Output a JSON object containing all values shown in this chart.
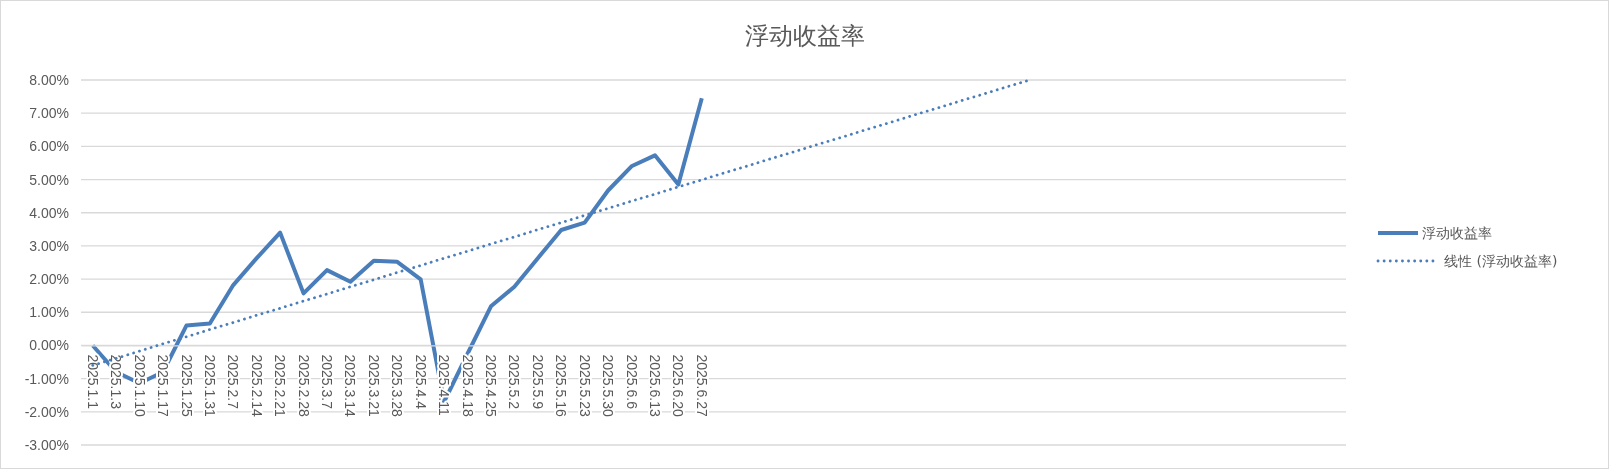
{
  "chart_data": {
    "type": "line",
    "title": "浮动收益率",
    "categories": [
      "2025.1.1",
      "2025.1.3",
      "2025.1.10",
      "2025.1.17",
      "2025.1.25",
      "2025.1.31",
      "2025.2.7",
      "2025.2.14",
      "2025.2.21",
      "2025.2.28",
      "2025.3.7",
      "2025.3.14",
      "2025.3.21",
      "2025.3.28",
      "2025.4.4",
      "2025.4.11",
      "2025.4.18",
      "2025.4.25",
      "2025.5.2",
      "2025.5.9",
      "2025.5.16",
      "2025.5.23",
      "2025.5.30",
      "2025.6.6",
      "2025.6.13",
      "2025.6.20",
      "2025.6.27",
      null,
      null,
      null,
      null,
      null,
      null,
      null,
      null,
      null,
      null,
      null,
      null,
      null,
      null,
      null,
      null,
      null,
      null,
      null,
      null,
      null,
      null,
      null,
      null,
      null,
      null,
      null
    ],
    "series": [
      {
        "name": "浮动收益率",
        "color": "#4a7ebb",
        "line_style": "solid",
        "values": [
          0,
          -0.8,
          -1.14,
          -0.8,
          0.6,
          0.66,
          1.82,
          2.63,
          3.4,
          1.57,
          2.27,
          1.92,
          2.55,
          2.52,
          1.99,
          -1.7,
          -0.25,
          1.18,
          1.77,
          2.63,
          3.48,
          3.7,
          4.67,
          5.4,
          5.73,
          4.85,
          7.45,
          null,
          null,
          null,
          null,
          null,
          null,
          null,
          null,
          null,
          null,
          null,
          null,
          null,
          null,
          null,
          null,
          null,
          null,
          null,
          null,
          null,
          null,
          null,
          null,
          null,
          null,
          null
        ]
      },
      {
        "name": "线性 (浮动收益率)",
        "color": "#4a7ebb",
        "line_style": "dotted",
        "values": [
          -0.6,
          -0.39,
          -0.17,
          0.05,
          0.26,
          0.48,
          0.69,
          0.91,
          1.12,
          1.34,
          1.55,
          1.77,
          1.98,
          2.2,
          2.41,
          2.63,
          2.84,
          3.06,
          3.27,
          3.49,
          3.7,
          3.92,
          4.13,
          4.35,
          4.56,
          4.78,
          4.99,
          5.21,
          5.42,
          5.64,
          5.85,
          6.07,
          6.28,
          6.5,
          6.71,
          6.93,
          7.14,
          7.36,
          7.57,
          7.79,
          8.0,
          null,
          null,
          null,
          null,
          null,
          null,
          null,
          null,
          null,
          null,
          null,
          null,
          null
        ]
      }
    ],
    "ylim": [
      -3,
      8
    ],
    "yticks": [
      {
        "value": -3,
        "label": "-3.00%"
      },
      {
        "value": -2,
        "label": "-2.00%"
      },
      {
        "value": -1,
        "label": "-1.00%"
      },
      {
        "value": 0,
        "label": "0.00%"
      },
      {
        "value": 1,
        "label": "1.00%"
      },
      {
        "value": 2,
        "label": "2.00%"
      },
      {
        "value": 3,
        "label": "3.00%"
      },
      {
        "value": 4,
        "label": "4.00%"
      },
      {
        "value": 5,
        "label": "5.00%"
      },
      {
        "value": 6,
        "label": "6.00%"
      },
      {
        "value": 7,
        "label": "7.00%"
      },
      {
        "value": 8,
        "label": "8.00%"
      }
    ],
    "grid": "y",
    "legend": "right",
    "marker": "none"
  }
}
